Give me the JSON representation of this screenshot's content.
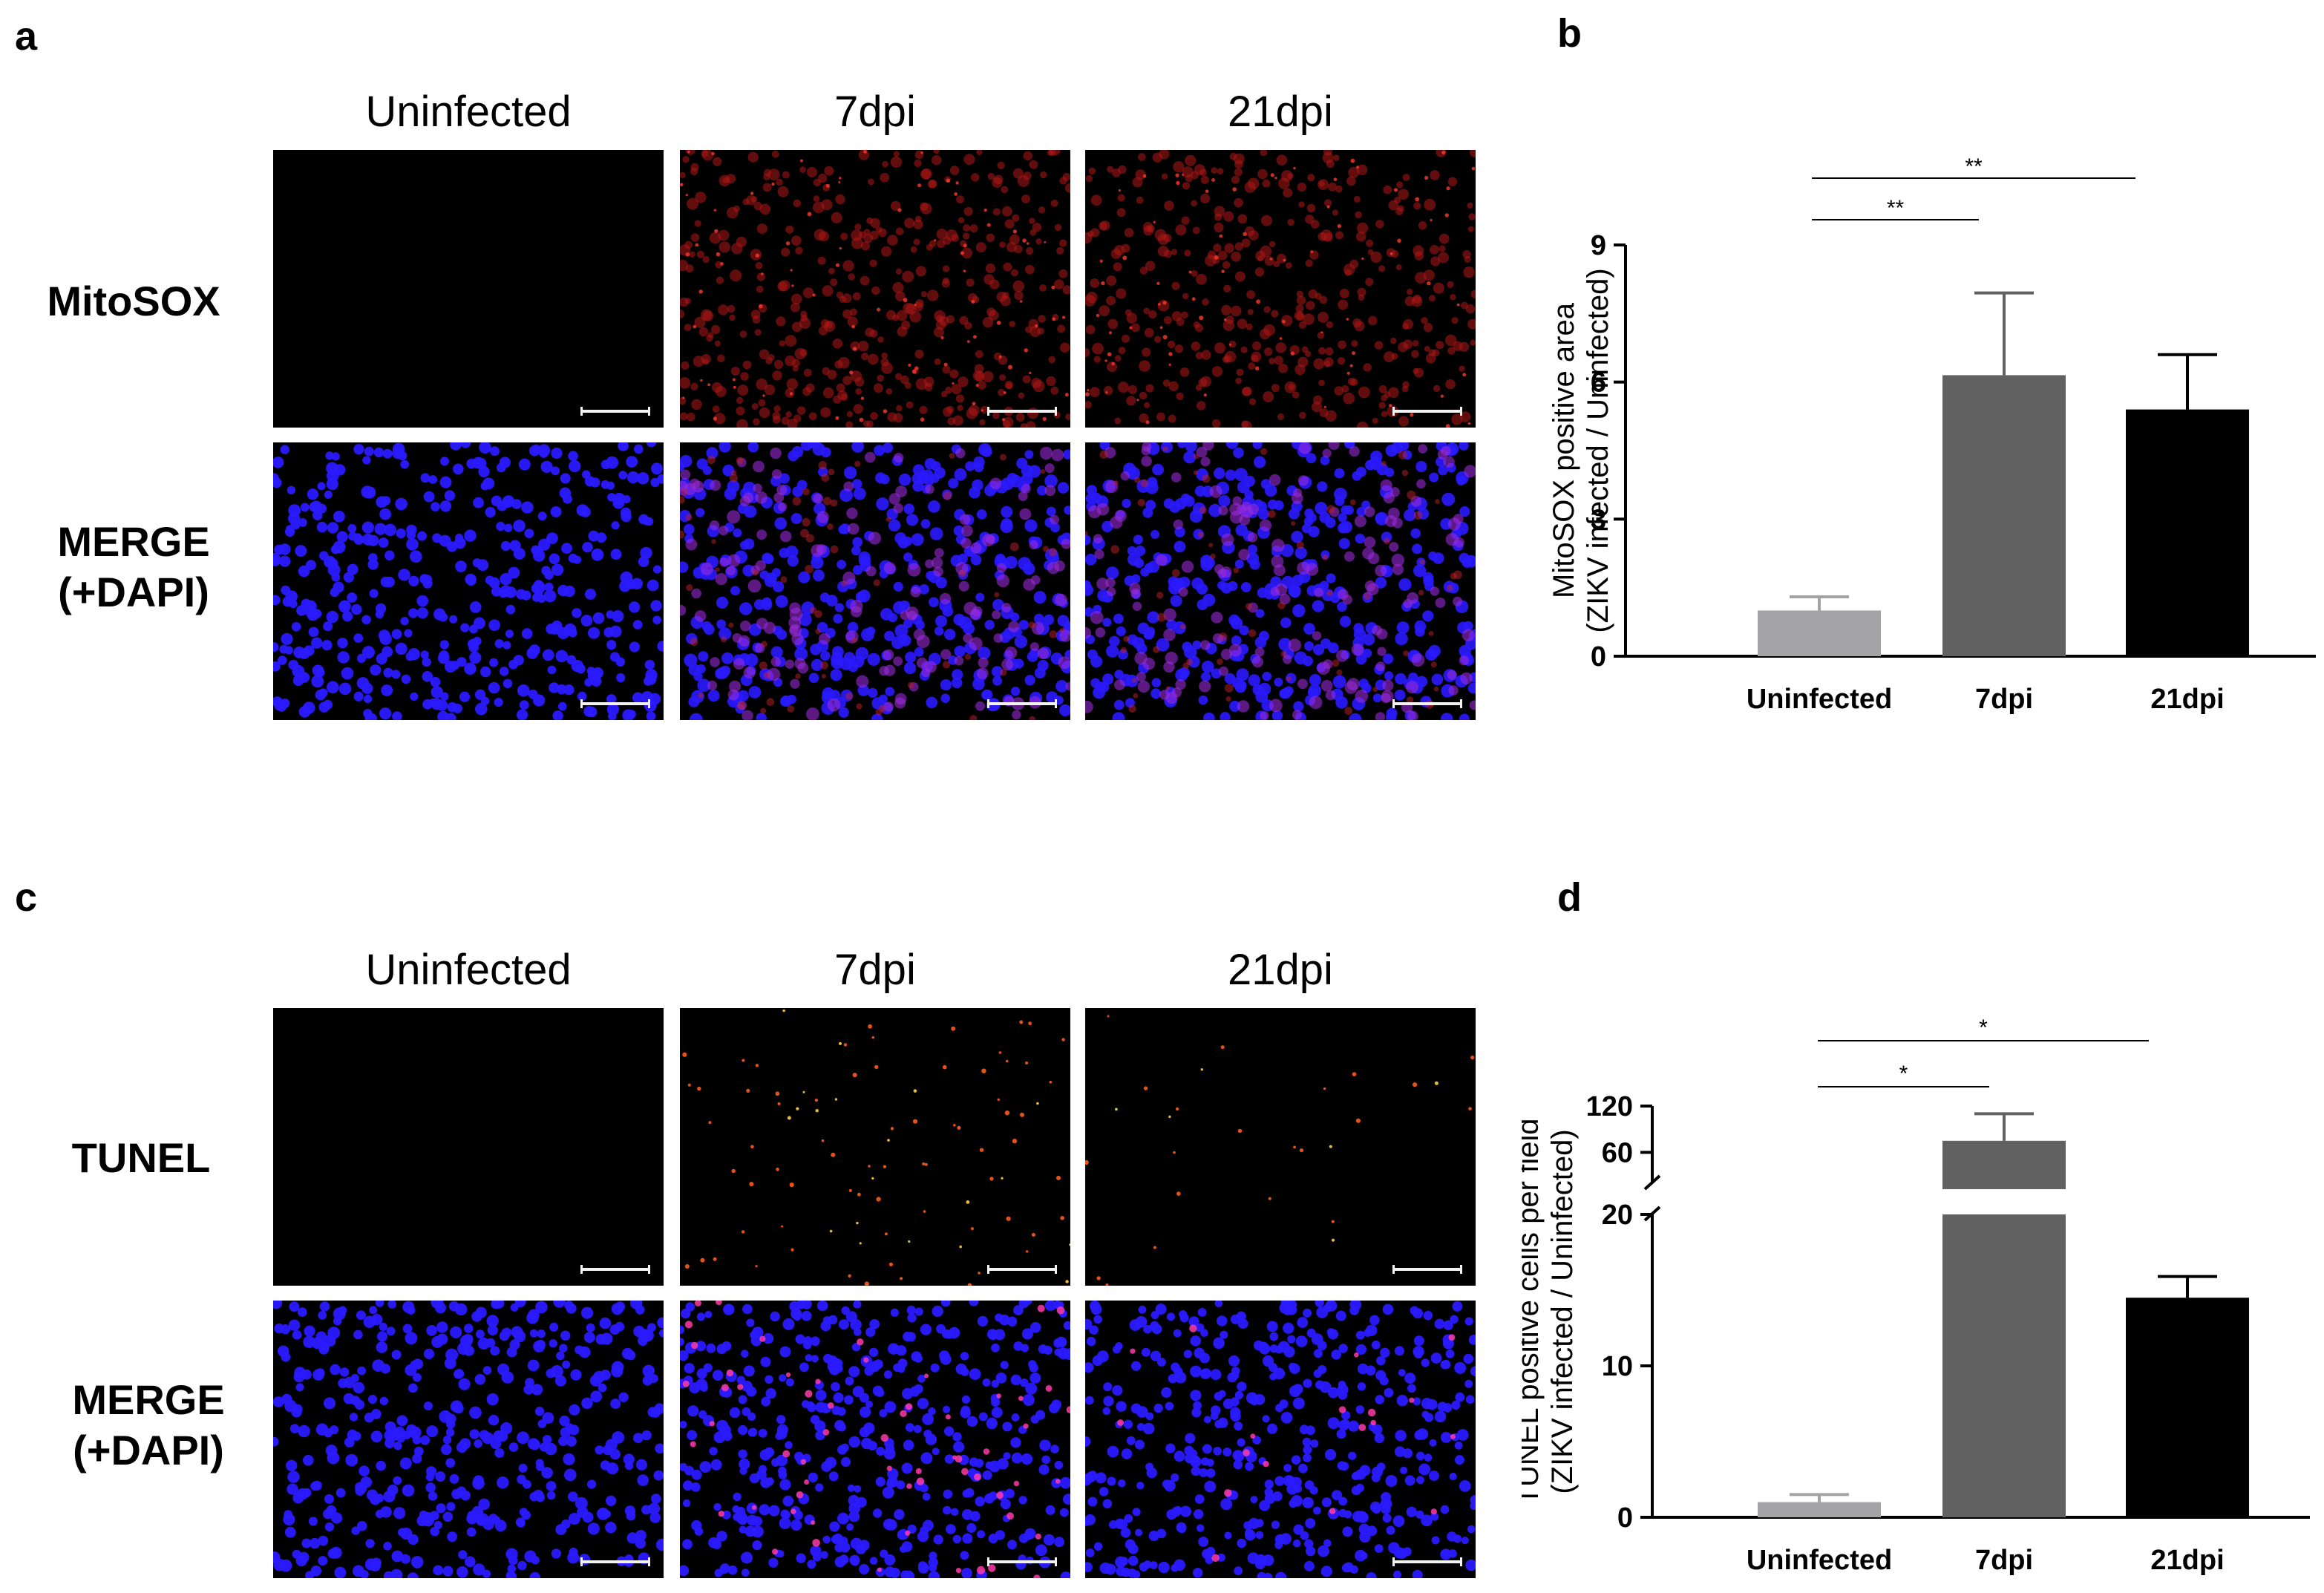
{
  "panel_labels": {
    "a": "a",
    "b": "b",
    "c": "c",
    "d": "d"
  },
  "image_panels": {
    "a": {
      "columns": [
        "Uninfected",
        "7dpi",
        "21dpi"
      ],
      "rows": [
        {
          "label": "MitoSOX",
          "stain": "mitosox"
        },
        {
          "label_line1": "MERGE",
          "label_line2": "(+DAPI)",
          "stain": "merge_mitosox"
        }
      ]
    },
    "c": {
      "columns": [
        "Uninfected",
        "7dpi",
        "21dpi"
      ],
      "rows": [
        {
          "label": "TUNEL",
          "stain": "tunel"
        },
        {
          "label_line1": "MERGE",
          "label_line2": "(+DAPI)",
          "stain": "merge_tunel"
        }
      ]
    }
  },
  "colors": {
    "uninfected_bar": "#a3a3a6",
    "dpi7_bar": "#616161",
    "dpi21_bar": "#000000",
    "dapi": "#2a1aff",
    "mitosox": "#b01818",
    "tunel": "#ff5a1a"
  },
  "chart_data": [
    {
      "panel": "b",
      "type": "bar",
      "categories": [
        "Uninfected",
        "7dpi",
        "21dpi"
      ],
      "values": [
        1.0,
        6.15,
        5.4
      ],
      "errors": [
        0.3,
        1.8,
        1.2
      ],
      "ylabel_line1": "MitoSOX positive area",
      "ylabel_line2": "(ZIKV infected / Uninfected)",
      "ylim": [
        0,
        9
      ],
      "yticks": [
        "0",
        "3",
        "6",
        "9"
      ],
      "significance": [
        {
          "from": 0,
          "to": 1,
          "label": "**"
        },
        {
          "from": 0,
          "to": 2,
          "label": "**"
        }
      ]
    },
    {
      "panel": "d",
      "type": "bar",
      "categories": [
        "Uninfected",
        "7dpi",
        "21dpi"
      ],
      "values": [
        1.0,
        75,
        14.5
      ],
      "errors": [
        0.5,
        35,
        1.4
      ],
      "ylabel_line1": "TUNEL positive cells per field",
      "ylabel_line2": "(ZIKV infected / Uninfected)",
      "axis_break": {
        "lower_range": [
          0,
          20
        ],
        "upper_range": [
          20,
          120
        ]
      },
      "yticks_lower": [
        "0",
        "10",
        "20"
      ],
      "yticks_upper": [
        "60",
        "120"
      ],
      "significance": [
        {
          "from": 0,
          "to": 1,
          "label": "*"
        },
        {
          "from": 0,
          "to": 2,
          "label": "*"
        }
      ]
    }
  ]
}
